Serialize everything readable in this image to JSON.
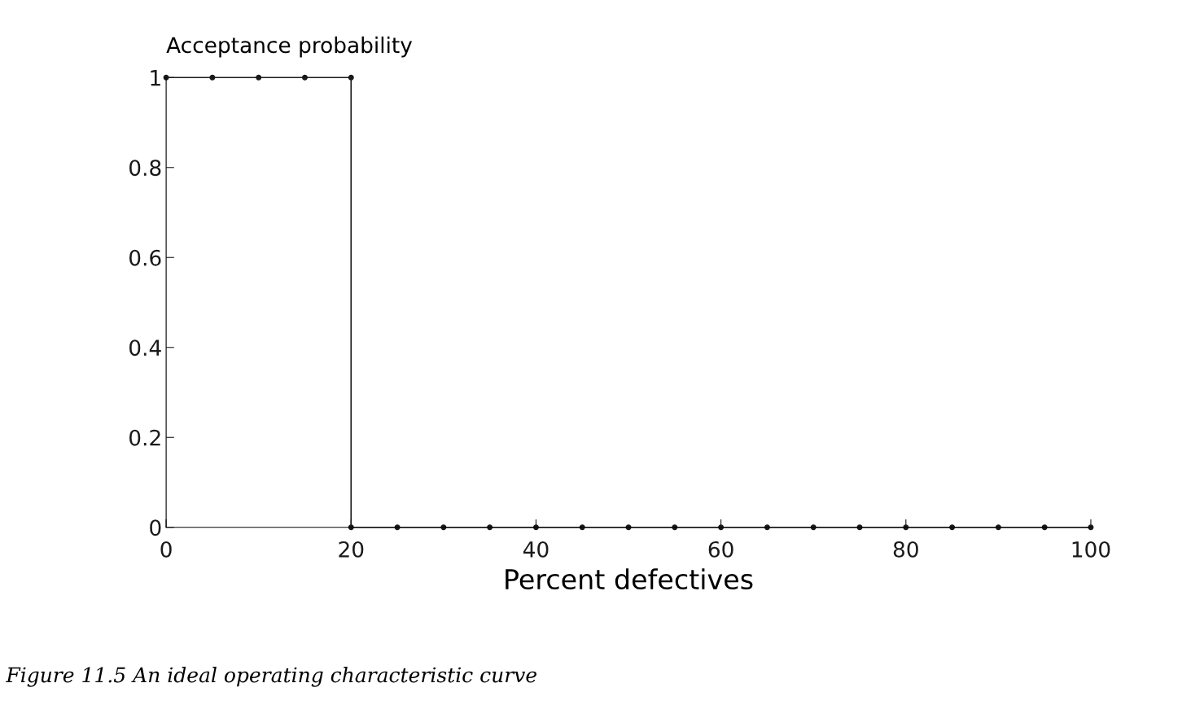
{
  "chart_data": {
    "type": "line",
    "ylabel": "Acceptance probability",
    "xlabel": "Percent defectives",
    "annotations": [
      "Figure 11.5 An ideal operating characteristic curve"
    ],
    "series": [
      {
        "color": "#1a1a1a",
        "x": [
          0,
          5,
          10,
          15,
          20,
          20,
          25,
          30,
          35,
          40,
          45,
          50,
          55,
          60,
          65,
          70,
          75,
          80,
          85,
          90,
          95,
          100
        ],
        "values": [
          1,
          1,
          1,
          1,
          1,
          0,
          0,
          0,
          0,
          0,
          0,
          0,
          0,
          0,
          0,
          0,
          0,
          0,
          0,
          0,
          0,
          0
        ]
      }
    ],
    "xlim": [
      0,
      100
    ],
    "ylim": [
      0,
      1
    ],
    "xticks": [
      0,
      20,
      40,
      60,
      80,
      100
    ],
    "yticks": [
      0,
      0.2,
      0.4,
      0.6,
      0.8,
      1
    ],
    "marker": "circle",
    "line_style": "solid",
    "grid": false
  }
}
